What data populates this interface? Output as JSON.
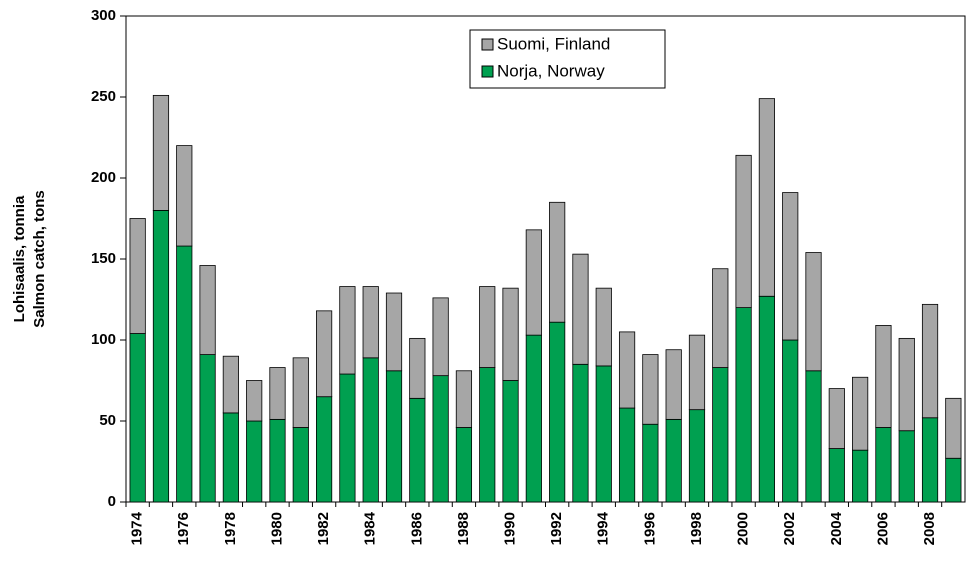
{
  "chart_data": {
    "type": "stacked-bar",
    "ylabel": [
      "Lohisaalis, tonnia",
      "Salmon catch, tons"
    ],
    "categories": [
      "1974",
      null,
      "1976",
      null,
      "1978",
      null,
      "1980",
      null,
      "1982",
      null,
      "1984",
      null,
      "1986",
      null,
      "1988",
      null,
      "1990",
      null,
      "1992",
      null,
      "1994",
      null,
      "1996",
      null,
      "1998",
      null,
      "2000",
      null,
      "2002",
      null,
      "2004",
      null,
      "2006",
      null,
      "2008",
      null
    ],
    "series": [
      {
        "name": "Norja, Norway",
        "color": "#00a050",
        "values": [
          104,
          180,
          158,
          91,
          55,
          50,
          51,
          46,
          65,
          79,
          89,
          81,
          64,
          78,
          46,
          83,
          75,
          103,
          111,
          85,
          84,
          58,
          48,
          51,
          57,
          83,
          120,
          127,
          100,
          81,
          33,
          32,
          46,
          44,
          52,
          27
        ]
      },
      {
        "name": "Suomi, Finland",
        "color": "#a6a6a6",
        "values": [
          71,
          71,
          62,
          55,
          35,
          25,
          32,
          43,
          53,
          54,
          44,
          48,
          37,
          48,
          35,
          50,
          57,
          65,
          74,
          68,
          48,
          47,
          43,
          43,
          46,
          61,
          94,
          122,
          91,
          73,
          37,
          45,
          63,
          57,
          70,
          37
        ]
      }
    ],
    "ylim": [
      0,
      300
    ],
    "yticks": [
      0,
      50,
      100,
      150,
      200,
      250,
      300
    ],
    "grid": false
  }
}
